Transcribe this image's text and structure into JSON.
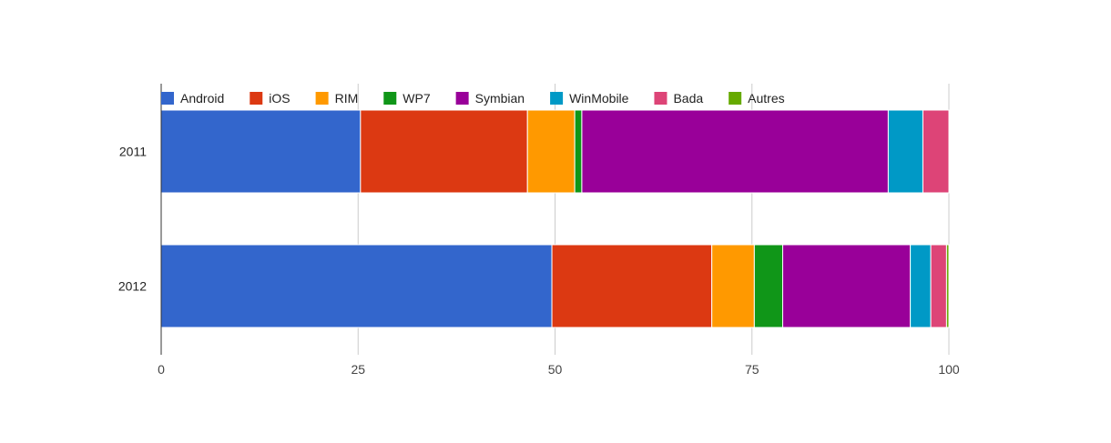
{
  "chart_data": {
    "type": "bar",
    "orientation": "horizontal",
    "stacked": true,
    "categories": [
      "2011",
      "2012"
    ],
    "series": [
      {
        "name": "Android",
        "color": "#3366cc",
        "values": [
          25.3,
          49.6
        ]
      },
      {
        "name": "iOS",
        "color": "#dc3912",
        "values": [
          21.2,
          20.3
        ]
      },
      {
        "name": "RIM",
        "color": "#ff9900",
        "values": [
          6.0,
          5.4
        ]
      },
      {
        "name": "WP7",
        "color": "#109618",
        "values": [
          0.9,
          3.6
        ]
      },
      {
        "name": "Symbian",
        "color": "#990099",
        "values": [
          38.9,
          16.2
        ]
      },
      {
        "name": "WinMobile",
        "color": "#0099c6",
        "values": [
          4.4,
          2.6
        ]
      },
      {
        "name": "Bada",
        "color": "#dd4477",
        "values": [
          3.3,
          2.0
        ]
      },
      {
        "name": "Autres",
        "color": "#66aa00",
        "values": [
          0.0,
          0.3
        ]
      }
    ],
    "xlim": [
      0,
      100
    ],
    "xticks": [
      "0",
      "25",
      "50",
      "75",
      "100"
    ],
    "grid": true,
    "legend_position": "top"
  }
}
